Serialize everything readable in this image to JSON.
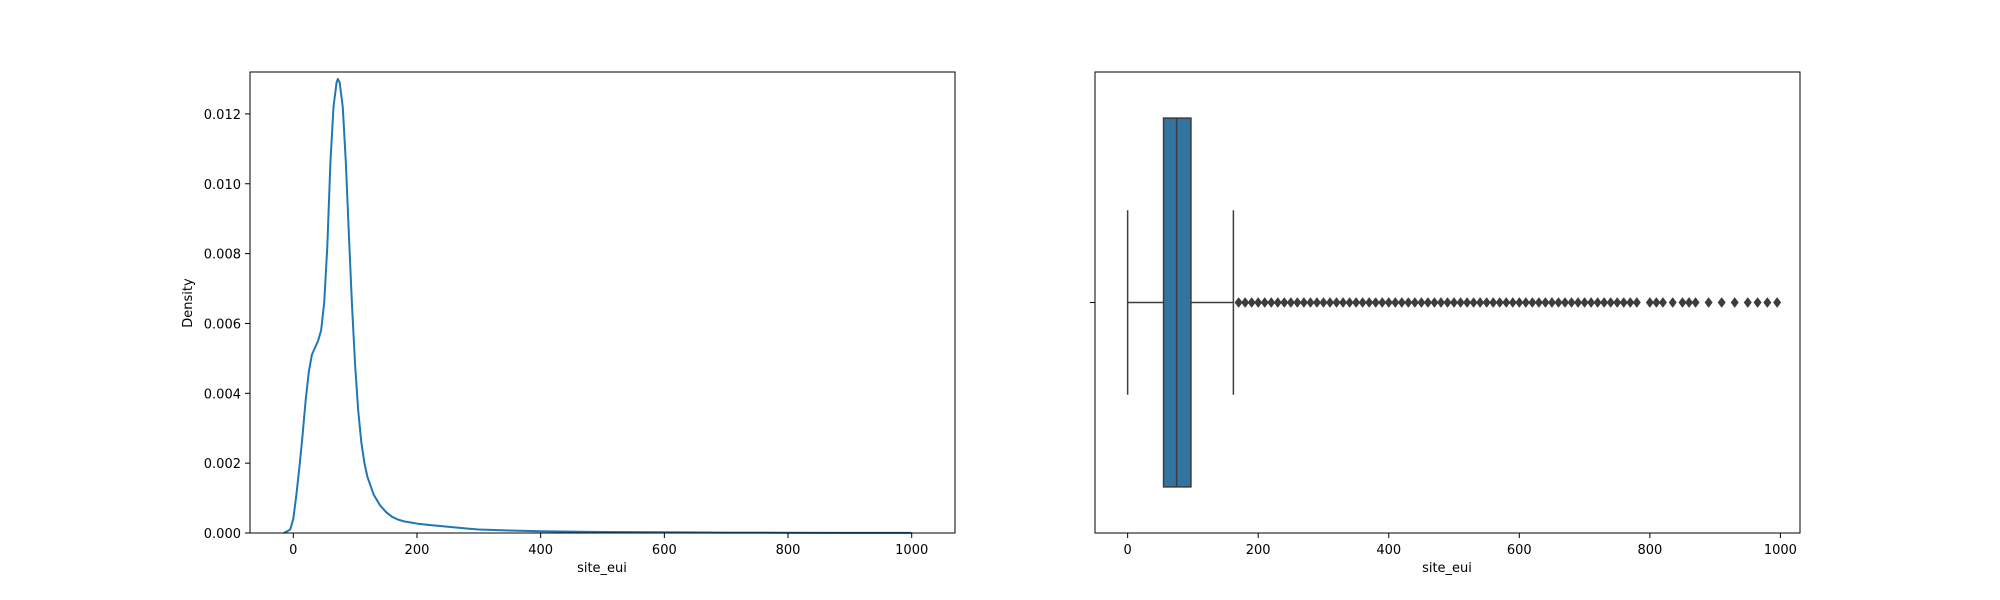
{
  "chart_data": [
    {
      "type": "line",
      "xlabel": "site_eui",
      "ylabel": "Density",
      "xlim": [
        -70,
        1070
      ],
      "ylim": [
        0,
        0.0132
      ],
      "x_ticks": [
        0,
        200,
        400,
        600,
        800,
        1000
      ],
      "x_tick_labels": [
        "0",
        "200",
        "400",
        "600",
        "800",
        "1000"
      ],
      "y_ticks": [
        0,
        0.002,
        0.004,
        0.006,
        0.008,
        0.01,
        0.012
      ],
      "y_tick_labels": [
        "0.000",
        "0.002",
        "0.004",
        "0.006",
        "0.008",
        "0.010",
        "0.012"
      ],
      "grid": false,
      "color": "#1f77b4",
      "series": [
        {
          "x": [
            -15,
            -5,
            0,
            5,
            10,
            15,
            20,
            25,
            30,
            35,
            40,
            45,
            50,
            55,
            60,
            65,
            70,
            72,
            75,
            80,
            85,
            90,
            95,
            100,
            105,
            110,
            115,
            120,
            130,
            140,
            150,
            160,
            170,
            180,
            190,
            200,
            220,
            250,
            280,
            300,
            350,
            400,
            500,
            600,
            700,
            800,
            900,
            1000
          ],
          "y": [
            0,
            0.0001,
            0.0004,
            0.0011,
            0.0019,
            0.0028,
            0.0038,
            0.0046,
            0.0051,
            0.0053,
            0.0055,
            0.0058,
            0.0066,
            0.0082,
            0.0106,
            0.0122,
            0.0129,
            0.013,
            0.0129,
            0.0122,
            0.0106,
            0.0085,
            0.0065,
            0.0048,
            0.0035,
            0.0026,
            0.002,
            0.0016,
            0.0011,
            0.0008,
            0.0006,
            0.00046,
            0.00038,
            0.00033,
            0.0003,
            0.00027,
            0.00023,
            0.00018,
            0.00013,
            0.0001,
            7e-05,
            5e-05,
            3e-05,
            2e-05,
            1.2e-05,
            8e-06,
            5e-06,
            2e-06
          ]
        }
      ]
    },
    {
      "type": "box",
      "xlabel": "site_eui",
      "xlim": [
        -50,
        1030
      ],
      "x_ticks": [
        0,
        200,
        400,
        600,
        800,
        1000
      ],
      "x_tick_labels": [
        "0",
        "200",
        "400",
        "600",
        "800",
        "1000"
      ],
      "grid": false,
      "box_color": "#3274a1",
      "line_color": "#3d3d3d",
      "whisker_low": 0,
      "q1": 55,
      "median": 75,
      "q3": 97,
      "whisker_high": 162,
      "outliers": [
        170,
        180,
        190,
        200,
        210,
        220,
        230,
        240,
        250,
        260,
        270,
        280,
        290,
        300,
        310,
        320,
        330,
        340,
        350,
        360,
        370,
        380,
        390,
        400,
        410,
        420,
        430,
        440,
        450,
        460,
        470,
        480,
        490,
        500,
        510,
        520,
        530,
        540,
        550,
        560,
        570,
        580,
        590,
        600,
        610,
        620,
        630,
        640,
        650,
        660,
        670,
        680,
        690,
        700,
        710,
        720,
        730,
        740,
        750,
        760,
        770,
        780,
        800,
        810,
        820,
        835,
        850,
        860,
        870,
        890,
        910,
        930,
        950,
        965,
        980,
        995
      ]
    }
  ]
}
